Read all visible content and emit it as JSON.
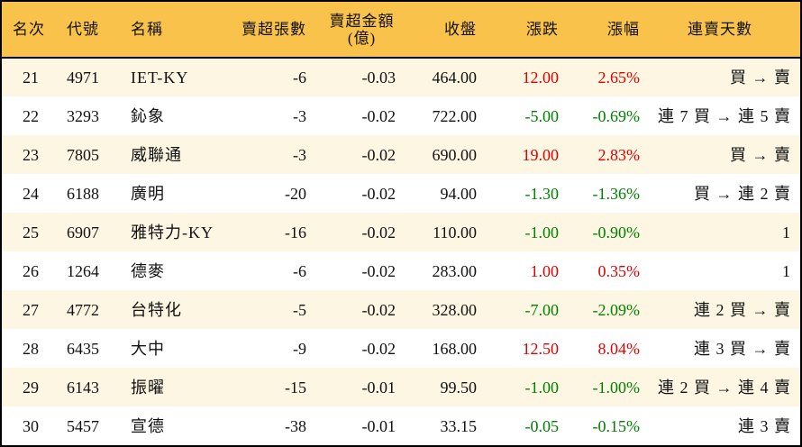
{
  "header": [
    "名次",
    "代號",
    "名稱",
    "賣超張數",
    "賣超金額\n(億)",
    "收盤",
    "漲跌",
    "漲幅",
    "連賣天數"
  ],
  "colors": {
    "header_bg": "#F8C24B",
    "row_alt_bg": "#FDF6E3",
    "up": "#e00000",
    "down": "#008000"
  },
  "rows": [
    [
      "21",
      "4971",
      "IET-KY",
      "-6",
      "-0.03",
      "464.00",
      "12.00",
      "2.65%",
      "買 → 賣",
      "up"
    ],
    [
      "22",
      "3293",
      "鈊象",
      "-3",
      "-0.02",
      "722.00",
      "-5.00",
      "-0.69%",
      "連 7 買 → 連 5 賣",
      "dn"
    ],
    [
      "23",
      "7805",
      "威聯通",
      "-3",
      "-0.02",
      "690.00",
      "19.00",
      "2.83%",
      "買 → 賣",
      "up"
    ],
    [
      "24",
      "6188",
      "廣明",
      "-20",
      "-0.02",
      "94.00",
      "-1.30",
      "-1.36%",
      "買 → 連 2 賣",
      "dn"
    ],
    [
      "25",
      "6907",
      "雅特力-KY",
      "-16",
      "-0.02",
      "110.00",
      "-1.00",
      "-0.90%",
      "1",
      "dn"
    ],
    [
      "26",
      "1264",
      "德麥",
      "-6",
      "-0.02",
      "283.00",
      "1.00",
      "0.35%",
      "1",
      "up"
    ],
    [
      "27",
      "4772",
      "台特化",
      "-5",
      "-0.02",
      "328.00",
      "-7.00",
      "-2.09%",
      "連 2 買 → 賣",
      "dn"
    ],
    [
      "28",
      "6435",
      "大中",
      "-9",
      "-0.02",
      "168.00",
      "12.50",
      "8.04%",
      "連 3 買 → 賣",
      "up"
    ],
    [
      "29",
      "6143",
      "振曜",
      "-15",
      "-0.01",
      "99.50",
      "-1.00",
      "-1.00%",
      "連 2 買 → 連 4 賣",
      "dn"
    ],
    [
      "30",
      "5457",
      "宣德",
      "-38",
      "-0.01",
      "33.15",
      "-0.05",
      "-0.15%",
      "連 3 賣",
      "dn"
    ]
  ]
}
